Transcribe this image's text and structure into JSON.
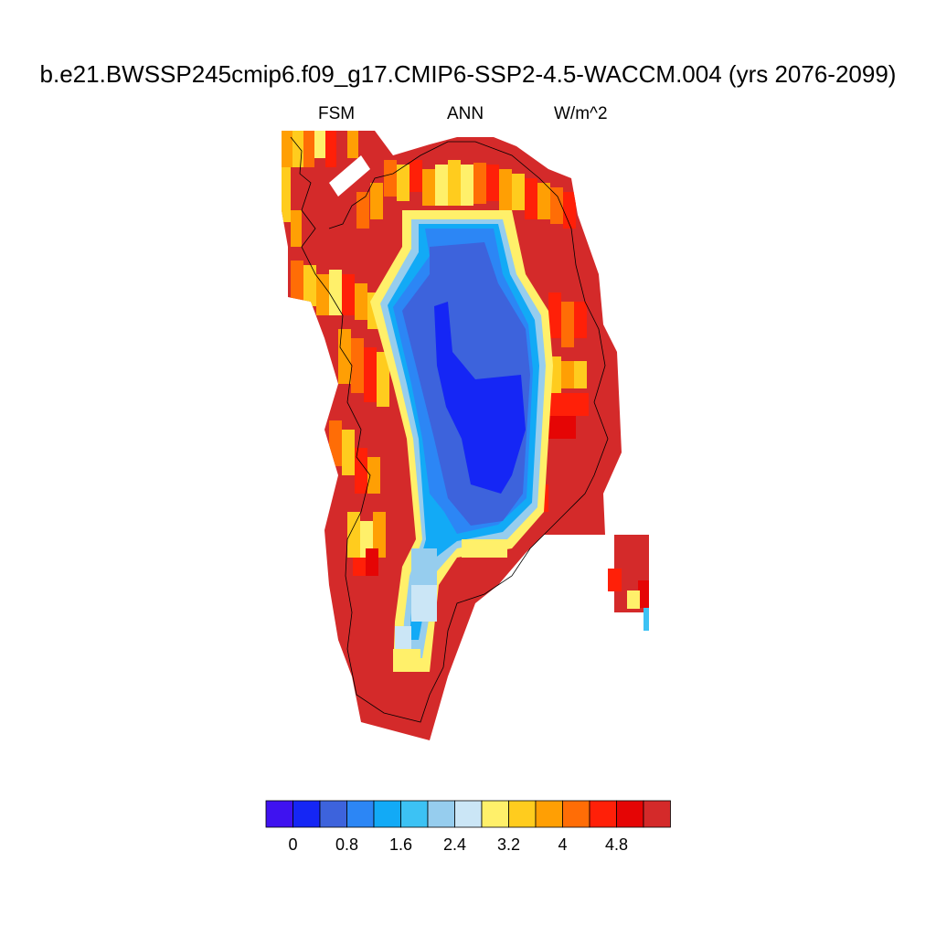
{
  "title": "b.e21.BWSSP245cmip6.f09_g17.CMIP6-SSP2-4.5-WACCM.004 (yrs 2076-2099)",
  "subtitle_left": "FSM",
  "subtitle_center": "ANN",
  "subtitle_right": "W/m^2",
  "colorbar": {
    "colors": [
      "#3f12f0",
      "#1526f5",
      "#3d63dc",
      "#2c86f5",
      "#12aaf6",
      "#3cc2f4",
      "#96cdee",
      "#cbe6f6",
      "#fff06a",
      "#ffcc1e",
      "#ff9f04",
      "#ff6d06",
      "#ff2008",
      "#e50505",
      "#d42a2a"
    ],
    "tick_labels": [
      "0",
      "0.8",
      "1.6",
      "2.4",
      "3.2",
      "4",
      "4.8"
    ]
  }
}
